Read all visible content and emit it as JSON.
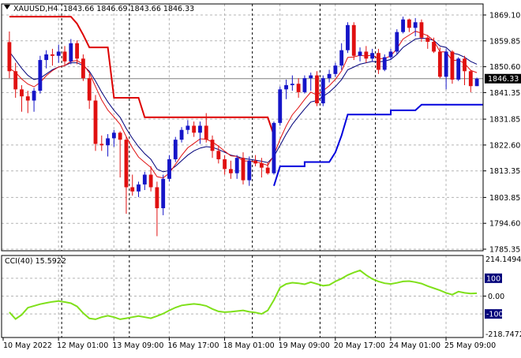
{
  "header": {
    "symbol": "XAUUSD,H4",
    "ohlc": "1843.66 1846.69 1843.66 1846.33"
  },
  "colors": {
    "bull": "#1515c8",
    "bear": "#e01010",
    "ma_fast": "#e01010",
    "ma_slow": "#00007a",
    "stop_up": "#0000dd",
    "stop_down": "#dd0000",
    "cci": "#7fe01a",
    "grid": "#b4b4b4",
    "price_tag_bg": "#000000",
    "price_tag_fg": "#ffffff"
  },
  "cci_panel": {
    "label": "CCI(40) 15.5922",
    "scale_top": "214.1494",
    "scale_bottom": "-218.7472"
  },
  "chart_data": [
    {
      "type": "candlestick",
      "title": "XAUUSD,H4",
      "x_labels": [
        "10 May 2022",
        "12 May 01:00",
        "13 May 09:00",
        "16 May 17:00",
        "18 May 01:00",
        "19 May 09:00",
        "20 May 17:00",
        "24 May 01:00",
        "25 May 09:00"
      ],
      "y_ticks": [
        "1869.10",
        "1859.85",
        "1850.60",
        "1841.35",
        "1831.85",
        "1822.60",
        "1813.35",
        "1803.85",
        "1794.60",
        "1785.35"
      ],
      "ylim": [
        1785.35,
        1869.1
      ],
      "current_price": "1846.33",
      "grid": true,
      "candles": [
        [
          1859.4,
          1863.2,
          1846.5,
          1849.0
        ],
        [
          1849.0,
          1852.0,
          1839.5,
          1842.5
        ],
        [
          1842.5,
          1844.0,
          1834.5,
          1840.0
        ],
        [
          1840.0,
          1842.0,
          1834.0,
          1838.5
        ],
        [
          1838.5,
          1843.0,
          1834.5,
          1842.0
        ],
        [
          1842.0,
          1854.5,
          1841.0,
          1853.0
        ],
        [
          1853.0,
          1856.5,
          1850.0,
          1855.0
        ],
        [
          1855.0,
          1857.0,
          1851.0,
          1854.5
        ],
        [
          1854.5,
          1858.5,
          1852.0,
          1856.0
        ],
        [
          1856.0,
          1858.0,
          1851.0,
          1852.5
        ],
        [
          1852.5,
          1860.5,
          1851.5,
          1859.0
        ],
        [
          1859.0,
          1860.0,
          1851.5,
          1853.5
        ],
        [
          1853.5,
          1855.0,
          1845.5,
          1846.5
        ],
        [
          1846.5,
          1848.0,
          1835.5,
          1838.5
        ],
        [
          1838.5,
          1840.5,
          1820.5,
          1823.0
        ],
        [
          1823.0,
          1826.0,
          1820.5,
          1822.5
        ],
        [
          1822.5,
          1826.5,
          1818.5,
          1825.0
        ],
        [
          1825.0,
          1828.0,
          1822.0,
          1827.0
        ],
        [
          1827.0,
          1827.5,
          1811.0,
          1824.5
        ],
        [
          1824.5,
          1825.5,
          1798.0,
          1807.5
        ],
        [
          1807.5,
          1812.0,
          1804.5,
          1806.0
        ],
        [
          1806.0,
          1809.5,
          1804.0,
          1808.5
        ],
        [
          1808.5,
          1813.0,
          1806.5,
          1812.0
        ],
        [
          1812.0,
          1815.0,
          1806.0,
          1807.5
        ],
        [
          1807.5,
          1809.5,
          1790.0,
          1800.0
        ],
        [
          1800.0,
          1812.0,
          1797.5,
          1810.5
        ],
        [
          1810.5,
          1819.0,
          1809.5,
          1817.5
        ],
        [
          1817.5,
          1825.5,
          1816.5,
          1824.5
        ],
        [
          1824.5,
          1829.0,
          1823.5,
          1828.0
        ],
        [
          1828.0,
          1831.5,
          1826.5,
          1829.5
        ],
        [
          1829.5,
          1831.0,
          1825.5,
          1827.0
        ],
        [
          1827.0,
          1831.0,
          1823.0,
          1829.5
        ],
        [
          1829.5,
          1834.0,
          1823.5,
          1824.5
        ],
        [
          1824.5,
          1826.0,
          1818.0,
          1820.5
        ],
        [
          1820.5,
          1822.5,
          1816.0,
          1817.5
        ],
        [
          1817.5,
          1819.0,
          1812.0,
          1814.0
        ],
        [
          1814.0,
          1817.0,
          1810.5,
          1812.5
        ],
        [
          1812.5,
          1819.0,
          1810.5,
          1818.0
        ],
        [
          1818.0,
          1820.0,
          1808.5,
          1810.0
        ],
        [
          1810.0,
          1818.5,
          1808.0,
          1817.0
        ],
        [
          1817.0,
          1819.0,
          1815.0,
          1816.0
        ],
        [
          1816.0,
          1818.0,
          1811.0,
          1814.5
        ],
        [
          1814.5,
          1816.5,
          1812.0,
          1812.5
        ],
        [
          1812.5,
          1831.0,
          1812.0,
          1830.5
        ],
        [
          1830.5,
          1843.5,
          1829.5,
          1842.5
        ],
        [
          1842.5,
          1846.0,
          1839.0,
          1844.0
        ],
        [
          1844.0,
          1847.5,
          1842.0,
          1844.5
        ],
        [
          1844.5,
          1846.5,
          1839.5,
          1841.5
        ],
        [
          1841.5,
          1847.5,
          1841.0,
          1846.5
        ],
        [
          1846.5,
          1848.5,
          1842.0,
          1847.5
        ],
        [
          1847.5,
          1849.0,
          1836.5,
          1837.5
        ],
        [
          1837.5,
          1847.5,
          1836.5,
          1846.5
        ],
        [
          1846.5,
          1849.5,
          1845.0,
          1848.0
        ],
        [
          1848.0,
          1852.0,
          1847.0,
          1851.0
        ],
        [
          1851.0,
          1859.0,
          1849.5,
          1856.5
        ],
        [
          1856.5,
          1866.5,
          1855.5,
          1865.5
        ],
        [
          1865.5,
          1866.5,
          1853.0,
          1854.5
        ],
        [
          1854.5,
          1857.5,
          1852.5,
          1856.0
        ],
        [
          1856.0,
          1858.0,
          1852.0,
          1853.5
        ],
        [
          1853.5,
          1857.0,
          1852.5,
          1855.5
        ],
        [
          1855.5,
          1857.0,
          1848.0,
          1849.5
        ],
        [
          1849.5,
          1855.0,
          1849.0,
          1854.0
        ],
        [
          1854.0,
          1857.0,
          1853.0,
          1856.0
        ],
        [
          1856.0,
          1864.0,
          1855.0,
          1863.0
        ],
        [
          1863.0,
          1868.5,
          1862.5,
          1867.5
        ],
        [
          1867.5,
          1867.8,
          1863.0,
          1864.5
        ],
        [
          1864.5,
          1868.0,
          1861.5,
          1866.5
        ],
        [
          1866.5,
          1867.5,
          1859.5,
          1861.0
        ],
        [
          1861.0,
          1862.0,
          1857.0,
          1859.5
        ],
        [
          1859.5,
          1861.0,
          1855.5,
          1856.0
        ],
        [
          1856.0,
          1857.5,
          1846.5,
          1847.0
        ],
        [
          1847.0,
          1857.0,
          1842.5,
          1856.0
        ],
        [
          1856.0,
          1856.5,
          1844.5,
          1846.0
        ],
        [
          1846.0,
          1854.0,
          1845.5,
          1853.5
        ],
        [
          1853.5,
          1854.5,
          1844.0,
          1849.0
        ],
        [
          1849.0,
          1849.5,
          1841.5,
          1843.66
        ],
        [
          1843.66,
          1846.69,
          1843.66,
          1846.33
        ]
      ],
      "ma_fast": [
        1850.0,
        1848.6,
        1846.2,
        1844.4,
        1843.4,
        1845.0,
        1847.4,
        1849.2,
        1850.5,
        1851.0,
        1852.5,
        1852.8,
        1851.5,
        1848.4,
        1843.5,
        1838.7,
        1835.1,
        1832.6,
        1830.0,
        1825.6,
        1821.6,
        1818.3,
        1816.4,
        1814.6,
        1811.3,
        1810.8,
        1812.6,
        1815.7,
        1818.9,
        1821.6,
        1823.2,
        1824.8,
        1824.7,
        1823.7,
        1822.2,
        1820.4,
        1818.7,
        1818.5,
        1816.9,
        1816.9,
        1816.6,
        1816.1,
        1815.3,
        1819.0,
        1824.7,
        1829.4,
        1833.4,
        1836.0,
        1838.9,
        1841.5,
        1840.5,
        1842.0,
        1843.8,
        1846.1,
        1849.1,
        1853.9,
        1854.1,
        1854.7,
        1854.4,
        1854.8,
        1853.4,
        1853.6,
        1854.4,
        1857.1,
        1860.5,
        1861.9,
        1863.3,
        1862.6,
        1861.7,
        1859.9,
        1855.9,
        1855.9,
        1852.8,
        1853.0,
        1851.8,
        1849.3,
        1848.5
      ],
      "ma_slow": [
        1856.0,
        1853.0,
        1850.0,
        1847.5,
        1846.0,
        1846.5,
        1848.0,
        1849.5,
        1850.5,
        1851.0,
        1852.0,
        1852.0,
        1851.0,
        1849.0,
        1845.5,
        1841.5,
        1838.0,
        1835.0,
        1832.5,
        1828.5,
        1825.0,
        1822.0,
        1819.5,
        1817.5,
        1814.0,
        1813.0,
        1813.5,
        1815.0,
        1817.0,
        1819.0,
        1820.5,
        1821.5,
        1822.0,
        1821.8,
        1821.0,
        1820.0,
        1819.0,
        1818.5,
        1817.8,
        1817.5,
        1817.2,
        1816.8,
        1816.3,
        1818.5,
        1822.5,
        1826.5,
        1830.0,
        1832.8,
        1835.5,
        1838.0,
        1838.5,
        1840.0,
        1841.5,
        1843.5,
        1846.0,
        1849.5,
        1850.5,
        1851.5,
        1852.0,
        1852.5,
        1852.3,
        1852.6,
        1853.2,
        1855.0,
        1857.5,
        1859.0,
        1860.5,
        1860.8,
        1860.6,
        1860.0,
        1858.0,
        1857.5,
        1855.5,
        1855.0,
        1854.0,
        1852.5,
        1851.5
      ],
      "stop_line_down": [
        [
          0,
          1868.5
        ],
        [
          10,
          1868.5
        ],
        [
          11,
          1866.0
        ],
        [
          12,
          1862.0
        ],
        [
          13,
          1857.5
        ],
        [
          16,
          1857.5
        ],
        [
          17,
          1839.5
        ],
        [
          21,
          1839.5
        ],
        [
          22,
          1832.5
        ],
        [
          42,
          1832.5
        ],
        [
          43,
          1826.0
        ]
      ],
      "stop_line_up": [
        [
          43,
          1808.0
        ],
        [
          44,
          1815.0
        ],
        [
          48,
          1815.0
        ],
        [
          48,
          1816.5
        ],
        [
          52,
          1816.5
        ],
        [
          53,
          1820.0
        ],
        [
          54,
          1826.0
        ],
        [
          55,
          1833.5
        ],
        [
          62,
          1833.5
        ],
        [
          62,
          1835.0
        ],
        [
          66,
          1835.0
        ],
        [
          67,
          1837.0
        ],
        [
          77,
          1837.0
        ]
      ]
    },
    {
      "type": "line",
      "title": "CCI(40) 15.5922",
      "ylim": [
        -218.7472,
        214.1494
      ],
      "y_ticks": [
        "214.1494",
        "100",
        "0.00",
        "-100",
        "-218.7472"
      ],
      "series": [
        {
          "values": [
            -90,
            -128,
            -105,
            -65,
            -55,
            -45,
            -38,
            -32,
            -28,
            -33,
            -40,
            -58,
            -95,
            -125,
            -130,
            -118,
            -110,
            -118,
            -130,
            -124,
            -118,
            -112,
            -118,
            -124,
            -112,
            -98,
            -80,
            -64,
            -52,
            -48,
            -44,
            -48,
            -55,
            -72,
            -86,
            -90,
            -88,
            -84,
            -80,
            -88,
            -92,
            -100,
            -80,
            -22,
            48,
            68,
            75,
            72,
            66,
            78,
            68,
            58,
            62,
            82,
            98,
            118,
            132,
            144,
            118,
            96,
            82,
            72,
            68,
            74,
            82,
            84,
            78,
            70,
            56,
            44,
            32,
            18,
            8,
            25,
            18,
            14,
            15.5922
          ]
        }
      ]
    }
  ]
}
